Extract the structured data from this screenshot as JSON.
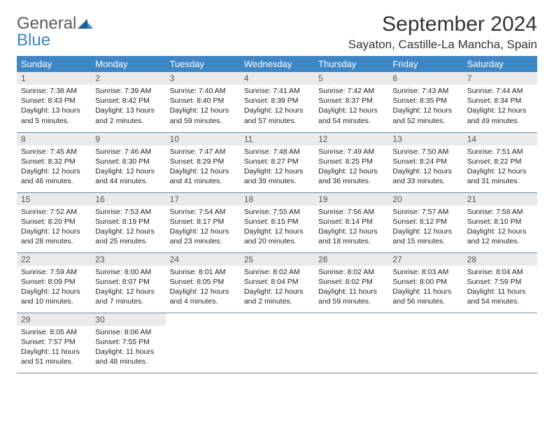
{
  "brand": {
    "word1": "General",
    "word2": "Blue"
  },
  "title": "September 2024",
  "location": "Sayaton, Castille-La Mancha, Spain",
  "colors": {
    "header_bg": "#3d87c7",
    "header_text": "#ffffff",
    "daynum_bg": "#eaeaea",
    "row_border": "#6a89a6",
    "logo_gray": "#5a5a5a",
    "logo_blue": "#3d87c7"
  },
  "fonts": {
    "title_size": 30,
    "subtitle_size": 17,
    "th_size": 13,
    "daynum_size": 12,
    "body_size": 10.5
  },
  "day_headers": [
    "Sunday",
    "Monday",
    "Tuesday",
    "Wednesday",
    "Thursday",
    "Friday",
    "Saturday"
  ],
  "weeks": [
    [
      {
        "n": "1",
        "sr": "Sunrise: 7:38 AM",
        "ss": "Sunset: 8:43 PM",
        "d1": "Daylight: 13 hours",
        "d2": "and 5 minutes."
      },
      {
        "n": "2",
        "sr": "Sunrise: 7:39 AM",
        "ss": "Sunset: 8:42 PM",
        "d1": "Daylight: 13 hours",
        "d2": "and 2 minutes."
      },
      {
        "n": "3",
        "sr": "Sunrise: 7:40 AM",
        "ss": "Sunset: 8:40 PM",
        "d1": "Daylight: 12 hours",
        "d2": "and 59 minutes."
      },
      {
        "n": "4",
        "sr": "Sunrise: 7:41 AM",
        "ss": "Sunset: 8:39 PM",
        "d1": "Daylight: 12 hours",
        "d2": "and 57 minutes."
      },
      {
        "n": "5",
        "sr": "Sunrise: 7:42 AM",
        "ss": "Sunset: 8:37 PM",
        "d1": "Daylight: 12 hours",
        "d2": "and 54 minutes."
      },
      {
        "n": "6",
        "sr": "Sunrise: 7:43 AM",
        "ss": "Sunset: 8:35 PM",
        "d1": "Daylight: 12 hours",
        "d2": "and 52 minutes."
      },
      {
        "n": "7",
        "sr": "Sunrise: 7:44 AM",
        "ss": "Sunset: 8:34 PM",
        "d1": "Daylight: 12 hours",
        "d2": "and 49 minutes."
      }
    ],
    [
      {
        "n": "8",
        "sr": "Sunrise: 7:45 AM",
        "ss": "Sunset: 8:32 PM",
        "d1": "Daylight: 12 hours",
        "d2": "and 46 minutes."
      },
      {
        "n": "9",
        "sr": "Sunrise: 7:46 AM",
        "ss": "Sunset: 8:30 PM",
        "d1": "Daylight: 12 hours",
        "d2": "and 44 minutes."
      },
      {
        "n": "10",
        "sr": "Sunrise: 7:47 AM",
        "ss": "Sunset: 8:29 PM",
        "d1": "Daylight: 12 hours",
        "d2": "and 41 minutes."
      },
      {
        "n": "11",
        "sr": "Sunrise: 7:48 AM",
        "ss": "Sunset: 8:27 PM",
        "d1": "Daylight: 12 hours",
        "d2": "and 39 minutes."
      },
      {
        "n": "12",
        "sr": "Sunrise: 7:49 AM",
        "ss": "Sunset: 8:25 PM",
        "d1": "Daylight: 12 hours",
        "d2": "and 36 minutes."
      },
      {
        "n": "13",
        "sr": "Sunrise: 7:50 AM",
        "ss": "Sunset: 8:24 PM",
        "d1": "Daylight: 12 hours",
        "d2": "and 33 minutes."
      },
      {
        "n": "14",
        "sr": "Sunrise: 7:51 AM",
        "ss": "Sunset: 8:22 PM",
        "d1": "Daylight: 12 hours",
        "d2": "and 31 minutes."
      }
    ],
    [
      {
        "n": "15",
        "sr": "Sunrise: 7:52 AM",
        "ss": "Sunset: 8:20 PM",
        "d1": "Daylight: 12 hours",
        "d2": "and 28 minutes."
      },
      {
        "n": "16",
        "sr": "Sunrise: 7:53 AM",
        "ss": "Sunset: 8:19 PM",
        "d1": "Daylight: 12 hours",
        "d2": "and 25 minutes."
      },
      {
        "n": "17",
        "sr": "Sunrise: 7:54 AM",
        "ss": "Sunset: 8:17 PM",
        "d1": "Daylight: 12 hours",
        "d2": "and 23 minutes."
      },
      {
        "n": "18",
        "sr": "Sunrise: 7:55 AM",
        "ss": "Sunset: 8:15 PM",
        "d1": "Daylight: 12 hours",
        "d2": "and 20 minutes."
      },
      {
        "n": "19",
        "sr": "Sunrise: 7:56 AM",
        "ss": "Sunset: 8:14 PM",
        "d1": "Daylight: 12 hours",
        "d2": "and 18 minutes."
      },
      {
        "n": "20",
        "sr": "Sunrise: 7:57 AM",
        "ss": "Sunset: 8:12 PM",
        "d1": "Daylight: 12 hours",
        "d2": "and 15 minutes."
      },
      {
        "n": "21",
        "sr": "Sunrise: 7:58 AM",
        "ss": "Sunset: 8:10 PM",
        "d1": "Daylight: 12 hours",
        "d2": "and 12 minutes."
      }
    ],
    [
      {
        "n": "22",
        "sr": "Sunrise: 7:59 AM",
        "ss": "Sunset: 8:09 PM",
        "d1": "Daylight: 12 hours",
        "d2": "and 10 minutes."
      },
      {
        "n": "23",
        "sr": "Sunrise: 8:00 AM",
        "ss": "Sunset: 8:07 PM",
        "d1": "Daylight: 12 hours",
        "d2": "and 7 minutes."
      },
      {
        "n": "24",
        "sr": "Sunrise: 8:01 AM",
        "ss": "Sunset: 8:05 PM",
        "d1": "Daylight: 12 hours",
        "d2": "and 4 minutes."
      },
      {
        "n": "25",
        "sr": "Sunrise: 8:02 AM",
        "ss": "Sunset: 8:04 PM",
        "d1": "Daylight: 12 hours",
        "d2": "and 2 minutes."
      },
      {
        "n": "26",
        "sr": "Sunrise: 8:02 AM",
        "ss": "Sunset: 8:02 PM",
        "d1": "Daylight: 11 hours",
        "d2": "and 59 minutes."
      },
      {
        "n": "27",
        "sr": "Sunrise: 8:03 AM",
        "ss": "Sunset: 8:00 PM",
        "d1": "Daylight: 11 hours",
        "d2": "and 56 minutes."
      },
      {
        "n": "28",
        "sr": "Sunrise: 8:04 AM",
        "ss": "Sunset: 7:59 PM",
        "d1": "Daylight: 11 hours",
        "d2": "and 54 minutes."
      }
    ],
    [
      {
        "n": "29",
        "sr": "Sunrise: 8:05 AM",
        "ss": "Sunset: 7:57 PM",
        "d1": "Daylight: 11 hours",
        "d2": "and 51 minutes."
      },
      {
        "n": "30",
        "sr": "Sunrise: 8:06 AM",
        "ss": "Sunset: 7:55 PM",
        "d1": "Daylight: 11 hours",
        "d2": "and 48 minutes."
      },
      null,
      null,
      null,
      null,
      null
    ]
  ]
}
